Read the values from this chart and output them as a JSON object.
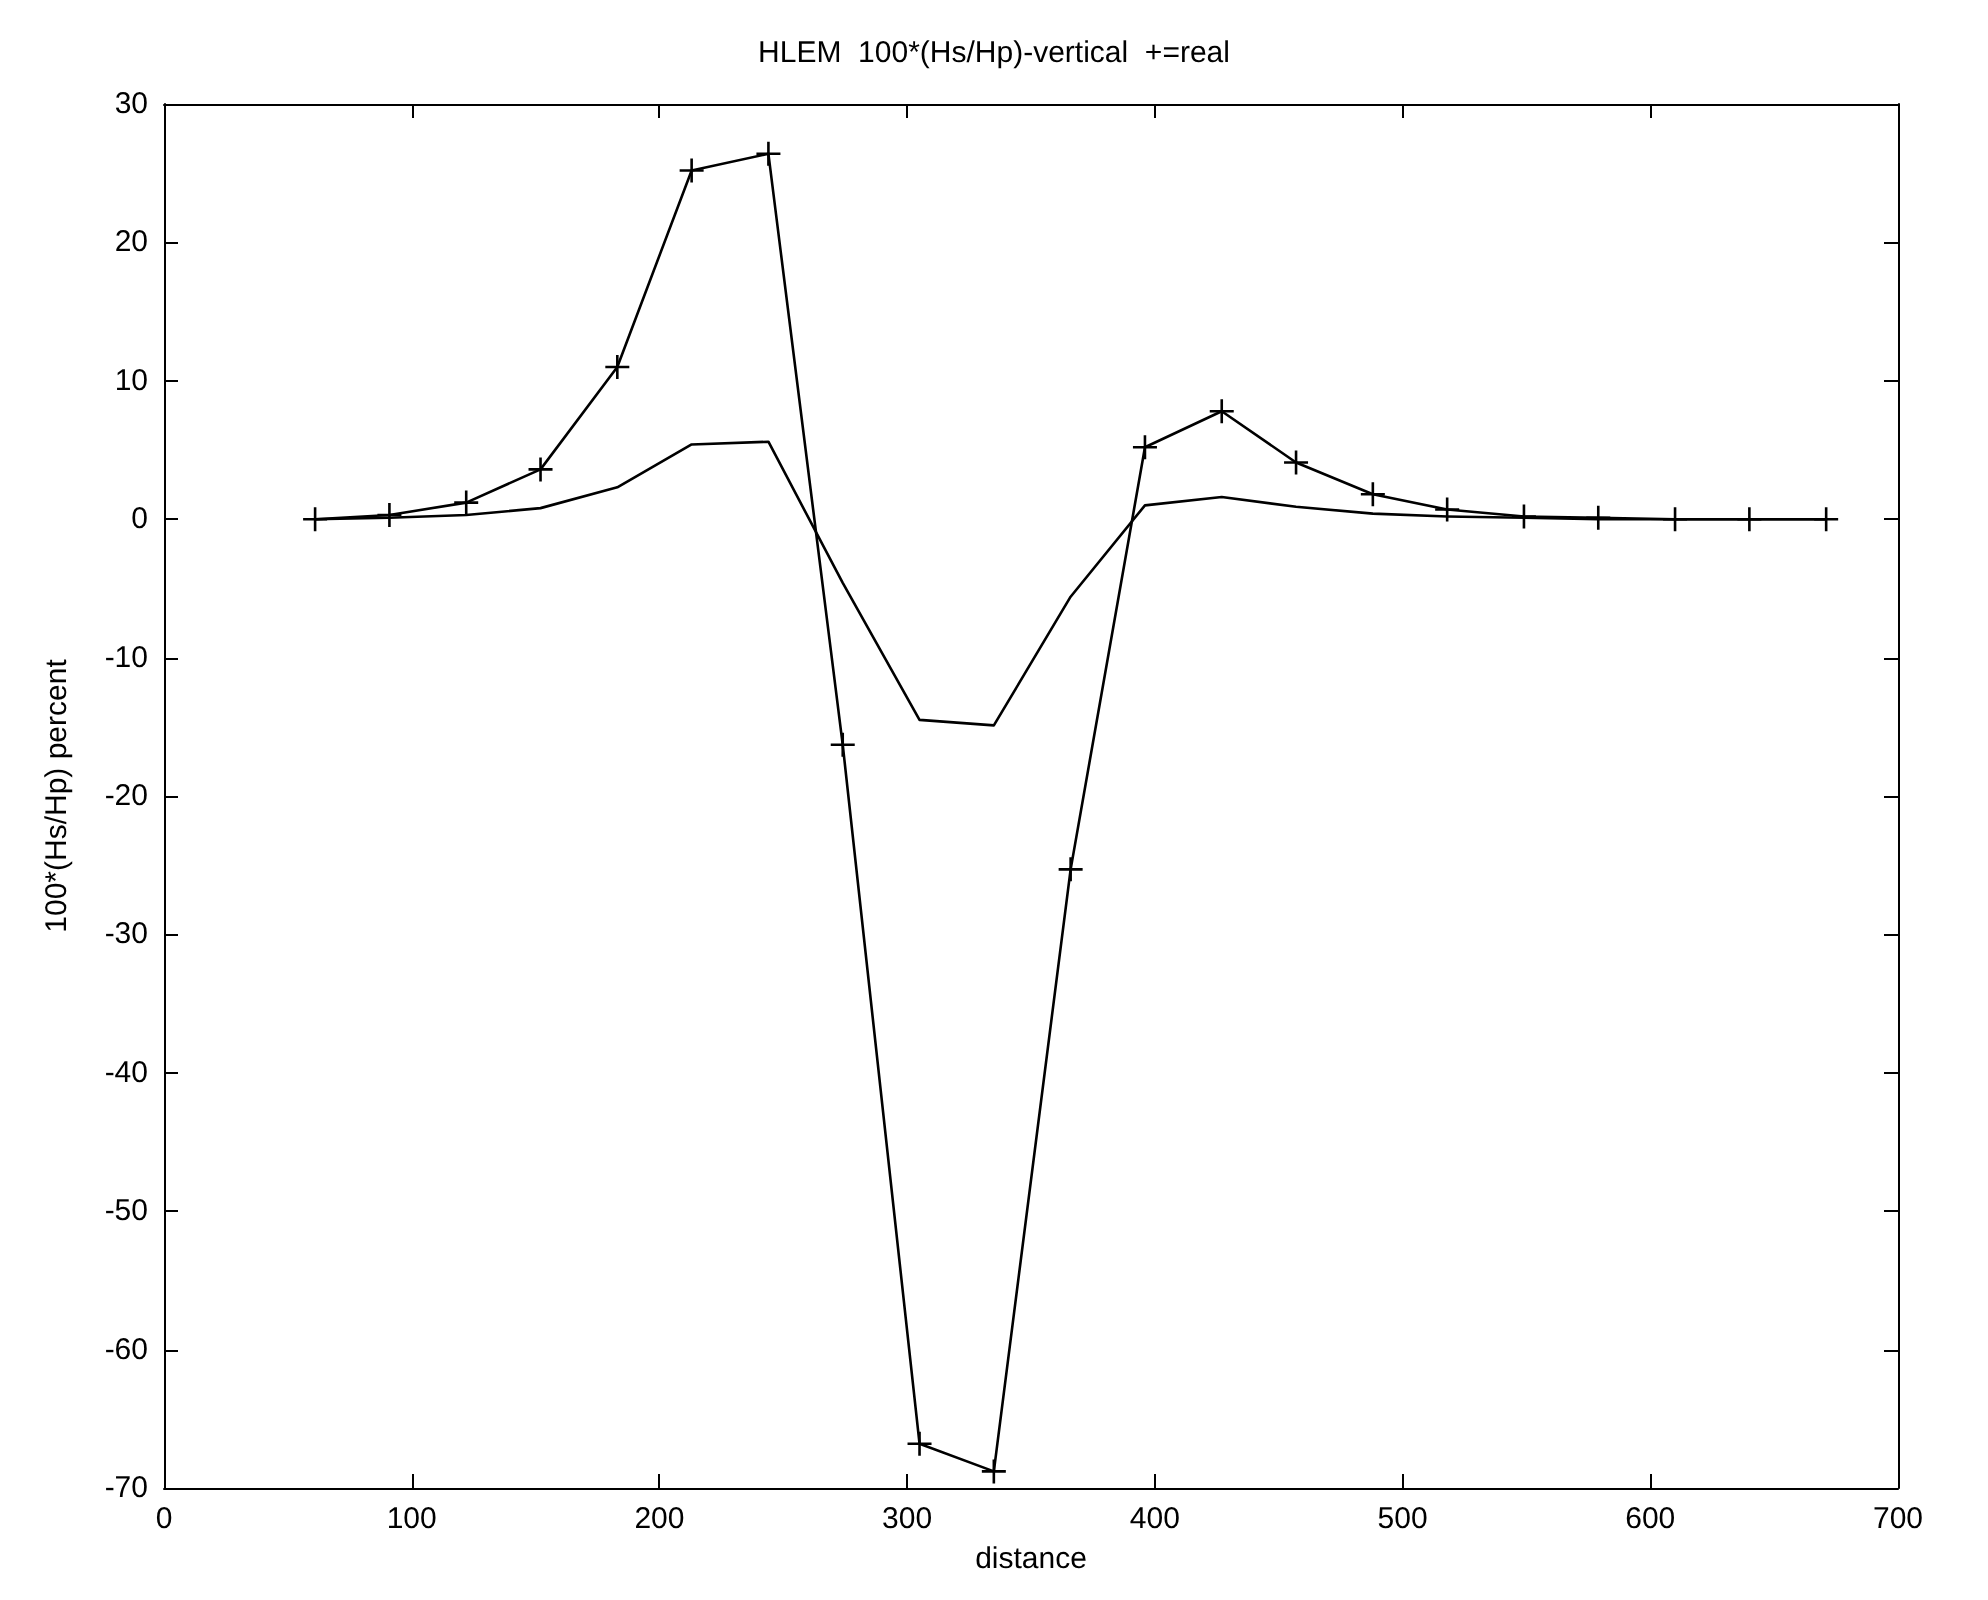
{
  "chart_data": {
    "type": "line",
    "title": "HLEM  100*(Hs/Hp)-vertical  +=real",
    "xlabel": "distance",
    "ylabel": "100*(Hs/Hp) percent",
    "x": [
      61,
      91,
      122,
      152,
      183,
      213,
      244,
      274,
      305,
      335,
      366,
      396,
      427,
      457,
      488,
      518,
      549,
      579,
      610,
      640,
      671
    ],
    "series": [
      {
        "color": "#000000",
        "marker": "cross",
        "values": [
          0,
          0.3,
          1.2,
          3.6,
          11,
          25.2,
          26.4,
          -16.3,
          -66.8,
          -68.8,
          -25.3,
          5.2,
          7.8,
          4.1,
          1.8,
          0.7,
          0.2,
          0.1,
          0,
          0,
          0
        ]
      },
      {
        "color": "#000000",
        "marker": "none",
        "values": [
          0,
          0.1,
          0.3,
          0.8,
          2.3,
          5.4,
          5.6,
          -4.6,
          -14.5,
          -14.9,
          -5.6,
          1,
          1.6,
          0.9,
          0.4,
          0.2,
          0.1,
          0,
          0,
          0,
          0
        ]
      }
    ],
    "xlim": [
      0,
      700
    ],
    "xticks": [
      0,
      100,
      200,
      300,
      400,
      500,
      600,
      700
    ],
    "ylim": [
      -70,
      30
    ],
    "yticks": [
      -70,
      -60,
      -50,
      -40,
      -30,
      -20,
      -10,
      0,
      10,
      20,
      30
    ],
    "grid": false,
    "line_style": "solid"
  }
}
